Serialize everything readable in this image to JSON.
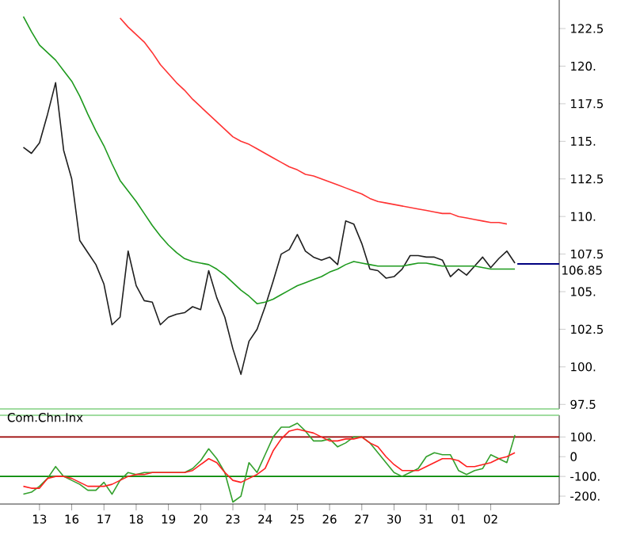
{
  "chart_data": [
    {
      "type": "line",
      "ylim": [
        97.2,
        124.4
      ],
      "tick_labels": "y",
      "categories": [
        null,
        null,
        "13",
        null,
        null,
        null,
        "16",
        null,
        null,
        null,
        "17",
        null,
        null,
        null,
        "18",
        null,
        null,
        null,
        "19",
        null,
        null,
        null,
        "20",
        null,
        null,
        null,
        "23",
        null,
        null,
        null,
        "24",
        null,
        null,
        null,
        "25",
        null,
        null,
        null,
        "26",
        null,
        null,
        null,
        "27",
        null,
        null,
        null,
        "30",
        null,
        null,
        null,
        "31",
        null,
        null,
        null,
        "01",
        null,
        null,
        null,
        "02",
        null,
        null,
        null
      ],
      "yticks": [
        97.5,
        {
          "value": 100,
          "label": "100."
        },
        102.5,
        {
          "value": 105,
          "label": "105."
        },
        107.5,
        {
          "value": 110,
          "label": "110."
        },
        112.5,
        {
          "value": 115,
          "label": "115."
        },
        117.5,
        {
          "value": 120,
          "label": "120."
        },
        122.5
      ],
      "ref_lines": [
        {
          "axis": "y",
          "value": 106.85,
          "label": "106.85",
          "color": "#000080"
        }
      ],
      "series": [
        {
          "color": "#1f1f1f",
          "values": [
            114.6,
            114.2,
            114.9,
            116.8,
            118.9,
            114.4,
            112.5,
            108.4,
            107.6,
            106.8,
            105.5,
            102.8,
            103.3,
            107.7,
            105.4,
            104.4,
            104.3,
            102.8,
            103.3,
            103.5,
            103.6,
            104.0,
            103.8,
            106.4,
            104.6,
            103.3,
            101.2,
            99.5,
            101.7,
            102.5,
            104.0,
            105.7,
            107.5,
            107.8,
            108.8,
            107.7,
            107.3,
            107.1,
            107.3,
            106.8,
            109.7,
            109.5,
            108.2,
            106.5,
            106.4,
            105.9,
            106.0,
            106.5,
            107.4,
            107.4,
            107.3,
            107.3,
            107.1,
            106.0,
            106.5,
            106.1,
            106.7,
            107.3,
            106.6,
            107.2,
            107.7,
            106.9
          ]
        },
        {
          "color": "#1e9a1e",
          "values": [
            123.3,
            122.3,
            121.4,
            120.9,
            120.4,
            119.7,
            119.0,
            118.0,
            116.8,
            115.7,
            114.7,
            113.5,
            112.4,
            111.7,
            111.0,
            110.2,
            109.4,
            108.7,
            108.1,
            107.6,
            107.2,
            107.0,
            106.9,
            106.8,
            106.5,
            106.1,
            105.6,
            105.1,
            104.7,
            104.2,
            104.3,
            104.5,
            104.8,
            105.1,
            105.4,
            105.6,
            105.8,
            106.0,
            106.3,
            106.5,
            106.8,
            107.0,
            106.9,
            106.8,
            106.7,
            106.7,
            106.7,
            106.7,
            106.8,
            106.9,
            106.9,
            106.8,
            106.7,
            106.7,
            106.7,
            106.7,
            106.7,
            106.6,
            106.5,
            106.5,
            106.5,
            106.5
          ]
        },
        {
          "color": "#ff3333",
          "values": [
            null,
            null,
            null,
            null,
            null,
            null,
            null,
            null,
            null,
            null,
            null,
            null,
            123.2,
            122.6,
            122.1,
            121.6,
            120.9,
            120.1,
            119.5,
            118.9,
            118.4,
            117.8,
            117.3,
            116.8,
            116.3,
            115.8,
            115.3,
            115.0,
            114.8,
            114.5,
            114.2,
            113.9,
            113.6,
            113.3,
            113.1,
            112.8,
            112.7,
            112.5,
            112.3,
            112.1,
            111.9,
            111.7,
            111.5,
            111.2,
            111.0,
            110.9,
            110.8,
            110.7,
            110.6,
            110.5,
            110.4,
            110.3,
            110.2,
            110.2,
            110.0,
            109.9,
            109.8,
            109.7,
            109.6,
            109.6,
            109.5,
            null
          ]
        }
      ]
    },
    {
      "type": "line",
      "title": "Com.Chn.Inx",
      "ylim": [
        -240,
        210
      ],
      "categories": [
        null,
        null,
        "13",
        null,
        null,
        null,
        "16",
        null,
        null,
        null,
        "17",
        null,
        null,
        null,
        "18",
        null,
        null,
        null,
        "19",
        null,
        null,
        null,
        "20",
        null,
        null,
        null,
        "23",
        null,
        null,
        null,
        "24",
        null,
        null,
        null,
        "25",
        null,
        null,
        null,
        "26",
        null,
        null,
        null,
        "27",
        null,
        null,
        null,
        "30",
        null,
        null,
        null,
        "31",
        null,
        null,
        null,
        "01",
        null,
        null,
        null,
        "02",
        null,
        null,
        null
      ],
      "yticks": [
        {
          "value": -200,
          "label": "-200."
        },
        {
          "value": -100,
          "label": "-100."
        },
        0,
        {
          "value": 100,
          "label": "100."
        }
      ],
      "ref_lines": [
        {
          "axis": "y",
          "value": 100,
          "color": "#990000"
        },
        {
          "axis": "y",
          "value": -100,
          "color": "#008800"
        }
      ],
      "series": [
        {
          "color": "#33a02c",
          "values": [
            -190,
            -180,
            -150,
            -110,
            -50,
            -100,
            -120,
            -140,
            -170,
            -170,
            -130,
            -190,
            -120,
            -80,
            -90,
            -80,
            -80,
            -80,
            -80,
            -80,
            -80,
            -60,
            -20,
            40,
            -10,
            -80,
            -230,
            -200,
            -30,
            -80,
            10,
            100,
            150,
            150,
            170,
            130,
            80,
            80,
            90,
            50,
            70,
            100,
            100,
            70,
            20,
            -30,
            -80,
            -100,
            -80,
            -60,
            0,
            20,
            10,
            10,
            -70,
            -90,
            -70,
            -60,
            10,
            -10,
            -30,
            110
          ]
        },
        {
          "color": "#ff2020",
          "values": [
            -150,
            -160,
            -160,
            -110,
            -100,
            -100,
            -110,
            -130,
            -150,
            -150,
            -150,
            -140,
            -120,
            -100,
            -90,
            -90,
            -80,
            -80,
            -80,
            -80,
            -80,
            -70,
            -40,
            -10,
            -30,
            -80,
            -120,
            -130,
            -110,
            -90,
            -60,
            30,
            90,
            130,
            140,
            130,
            120,
            100,
            80,
            80,
            90,
            90,
            100,
            70,
            50,
            0,
            -40,
            -70,
            -70,
            -70,
            -50,
            -30,
            -10,
            -10,
            -20,
            -50,
            -50,
            -40,
            -30,
            -10,
            0,
            20
          ]
        }
      ]
    }
  ]
}
